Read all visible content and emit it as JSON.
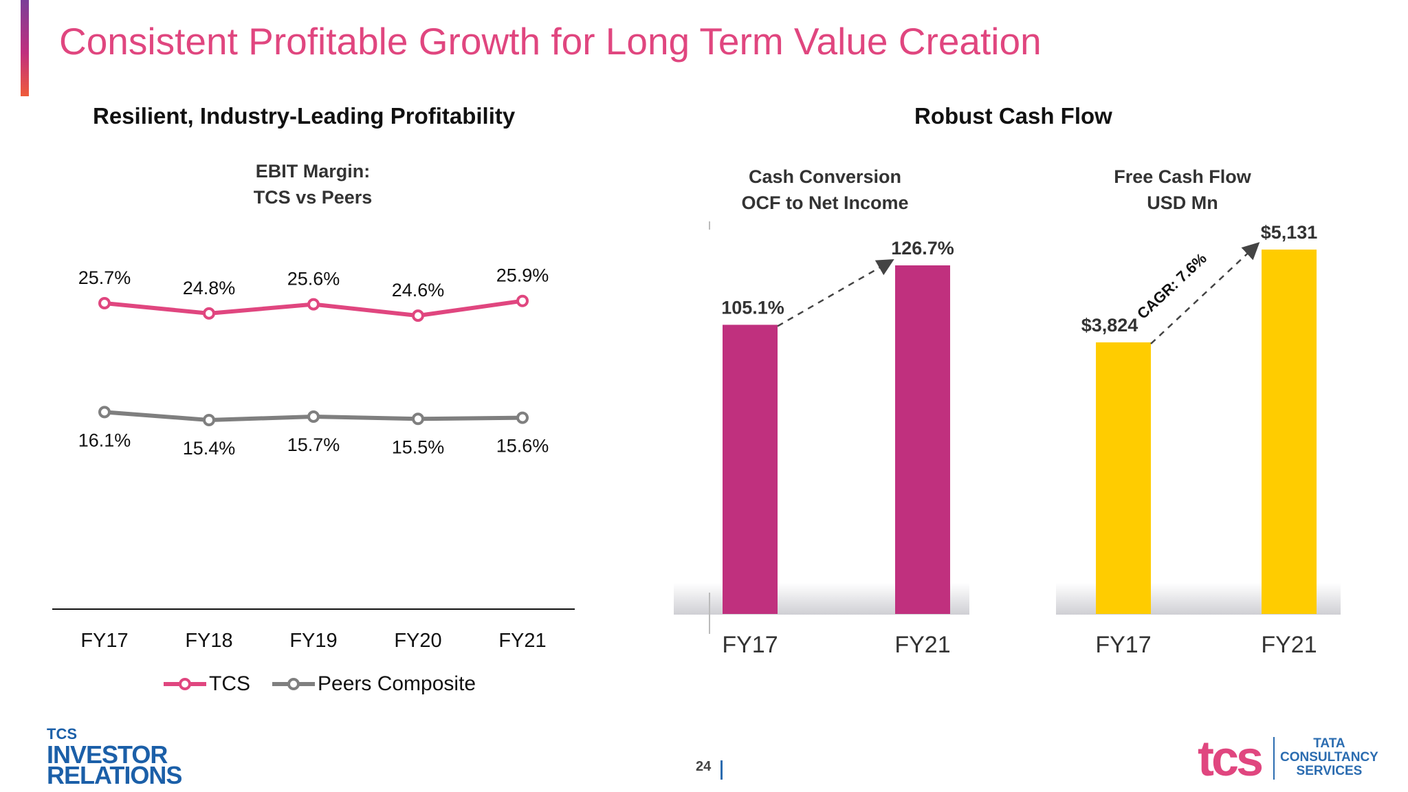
{
  "header": {
    "title": "Consistent Profitable Growth for Long Term Value Creation"
  },
  "left": {
    "section_title": "Resilient, Industry-Leading Profitability",
    "chart_title_line1": "EBIT Margin:",
    "chart_title_line2": "TCS vs Peers"
  },
  "right": {
    "section_title": "Robust Cash Flow",
    "cash_title_line1": "Cash Conversion",
    "cash_title_line2": "OCF to Net Income",
    "fcf_title_line1": "Free Cash Flow",
    "fcf_title_line2": "USD Mn"
  },
  "colors": {
    "tcs": "#e0467f",
    "peers": "#7f7f7f",
    "cash_bar": "#c0307e",
    "fcf_bar": "#ffcc00",
    "title": "#e0467f"
  },
  "chart_data": [
    {
      "type": "line",
      "title": "EBIT Margin: TCS vs Peers",
      "categories": [
        "FY17",
        "FY18",
        "FY19",
        "FY20",
        "FY21"
      ],
      "series": [
        {
          "name": "TCS",
          "values": [
            25.7,
            24.8,
            25.6,
            24.6,
            25.9
          ],
          "labels": [
            "25.7%",
            "24.8%",
            "25.6%",
            "24.6%",
            "25.9%"
          ]
        },
        {
          "name": "Peers Composite",
          "values": [
            16.1,
            15.4,
            15.7,
            15.5,
            15.6
          ],
          "labels": [
            "16.1%",
            "15.4%",
            "15.7%",
            "15.5%",
            "15.6%"
          ]
        }
      ],
      "legend": "bottom"
    },
    {
      "type": "bar",
      "title": "Cash Conversion OCF to Net Income",
      "categories": [
        "FY17",
        "FY21"
      ],
      "values": [
        105.1,
        126.7
      ],
      "labels": [
        "105.1%",
        "126.7%"
      ]
    },
    {
      "type": "bar",
      "title": "Free Cash Flow USD Mn",
      "categories": [
        "FY17",
        "FY21"
      ],
      "values": [
        3824,
        5131
      ],
      "labels": [
        "$3,824",
        "$5,131"
      ],
      "annotation": "CAGR: 7.6%"
    }
  ],
  "legend": {
    "tcs": "TCS",
    "peers": "Peers Composite"
  },
  "footer": {
    "ir_line1": "TCS",
    "ir_line2": "INVESTOR",
    "ir_line3": "RELATIONS",
    "page_number": "24",
    "tcs_logo": "tcs",
    "tata_line1": "TATA",
    "tata_line2": "CONSULTANCY",
    "tata_line3": "SERVICES"
  }
}
